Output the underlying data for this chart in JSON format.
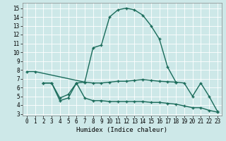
{
  "bg_color": "#cde8e8",
  "line_color": "#1a6b5a",
  "grid_color": "#b8d8d8",
  "xlabel": "Humidex (Indice chaleur)",
  "xlim": [
    -0.5,
    23.5
  ],
  "ylim": [
    2.8,
    15.6
  ],
  "yticks": [
    3,
    4,
    5,
    6,
    7,
    8,
    9,
    10,
    11,
    12,
    13,
    14,
    15
  ],
  "xticks": [
    0,
    1,
    2,
    3,
    4,
    5,
    6,
    7,
    8,
    9,
    10,
    11,
    12,
    13,
    14,
    15,
    16,
    17,
    18,
    19,
    20,
    21,
    22,
    23
  ],
  "curve1_x": [
    0,
    1,
    7,
    8,
    9,
    10,
    11,
    12,
    13,
    14,
    15,
    16,
    17,
    18
  ],
  "curve1_y": [
    7.8,
    7.8,
    6.6,
    10.5,
    10.8,
    14.0,
    14.8,
    15.0,
    14.8,
    14.2,
    13.0,
    11.5,
    8.3,
    6.6
  ],
  "curve2_x": [
    2,
    3,
    4,
    5,
    6,
    7,
    8,
    9,
    10,
    11,
    12,
    13,
    14,
    15,
    16,
    17,
    18,
    19,
    20,
    21,
    22,
    23
  ],
  "curve2_y": [
    6.5,
    6.5,
    4.8,
    5.2,
    6.5,
    6.6,
    6.5,
    6.5,
    6.6,
    6.7,
    6.7,
    6.8,
    6.9,
    6.8,
    6.7,
    6.65,
    6.6,
    6.5,
    5.0,
    6.5,
    5.0,
    3.3
  ],
  "curve3_x": [
    2,
    3,
    4,
    5,
    6,
    7,
    8,
    9,
    10,
    11,
    12,
    13,
    14,
    15,
    16,
    17,
    18,
    19,
    20,
    21,
    22,
    23
  ],
  "curve3_y": [
    6.5,
    6.5,
    4.5,
    4.8,
    6.5,
    4.8,
    4.5,
    4.5,
    4.4,
    4.4,
    4.4,
    4.4,
    4.4,
    4.3,
    4.3,
    4.2,
    4.1,
    3.9,
    3.7,
    3.7,
    3.4,
    3.2
  ],
  "lw": 1.0,
  "marker": "+",
  "markersize": 3.5
}
